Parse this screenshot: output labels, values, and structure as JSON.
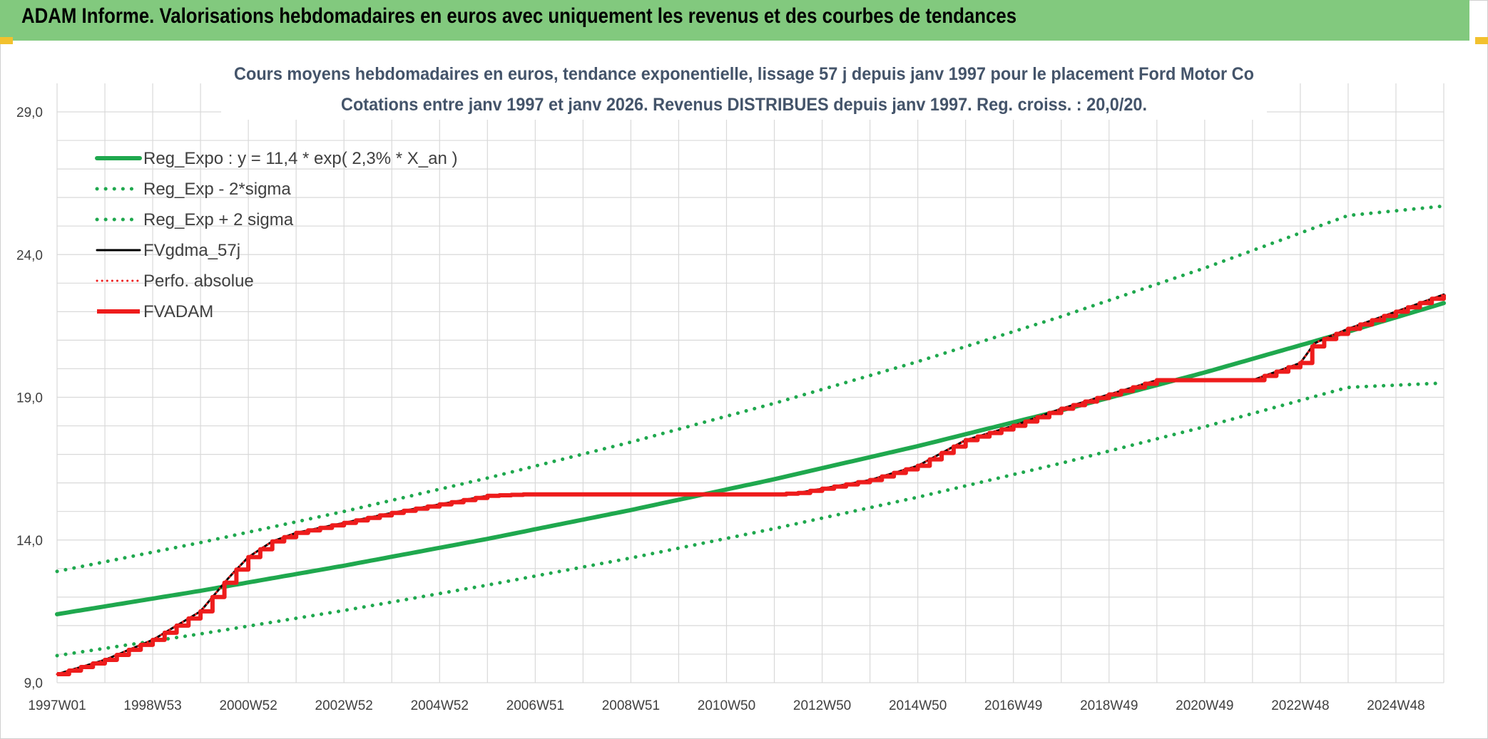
{
  "header": {
    "title": "ADAM Informe. Valorisations hebdomadaires en euros avec uniquement les revenus et des courbes de tendances"
  },
  "colors": {
    "header_bg": "#82c97e",
    "green": "#1fa84e",
    "red": "#ee1c1c",
    "black": "#000000",
    "grid": "#d9d9d9"
  },
  "chart_data": {
    "type": "line",
    "title": "Cours moyens hebdomadaires en euros, tendance exponentielle, lissage 57 j depuis janv 1997 pour le placement Ford Motor Co",
    "subtitle": "Cotations entre janv 1997 et janv 2026. Revenus DISTRIBUES depuis janv 1997. Reg. croiss. : 20,0/20.",
    "xlabel": "",
    "ylabel": "",
    "ylim": [
      9.0,
      29.0
    ],
    "xlim": [
      1997.0,
      2026.0
    ],
    "y_ticks": [
      "9,0",
      "14,0",
      "19,0",
      "24,0",
      "29,0"
    ],
    "y_tick_values": [
      9,
      14,
      19,
      24,
      29
    ],
    "x_ticks": [
      "1997W01",
      "1998W53",
      "2000W52",
      "2002W52",
      "2004W52",
      "2006W51",
      "2008W51",
      "2010W50",
      "2012W50",
      "2014W50",
      "2016W49",
      "2018W49",
      "2020W49",
      "2022W48",
      "2024W48"
    ],
    "x_tick_values": [
      1997,
      1999,
      2001,
      2003,
      2005,
      2007,
      2009,
      2011,
      2013,
      2015,
      2017,
      2019,
      2021,
      2023,
      2025
    ],
    "grid": true,
    "legend_position": "top-left",
    "series": [
      {
        "name": "Reg_Expo : y = 11,4 * exp( 2,3% *  X_an )",
        "style": "solid-green",
        "x": [
          1997,
          2000,
          2003,
          2006,
          2009,
          2012,
          2015,
          2018,
          2021,
          2024,
          2026
        ],
        "y": [
          11.4,
          12.22,
          13.1,
          14.04,
          15.05,
          16.13,
          17.29,
          18.54,
          19.87,
          21.3,
          22.3
        ]
      },
      {
        "name": "Reg_Exp - 2*sigma",
        "style": "dotted-green",
        "x": [
          1997,
          2000,
          2003,
          2006,
          2009,
          2012,
          2015,
          2018,
          2021,
          2024,
          2026
        ],
        "y": [
          9.95,
          10.71,
          11.53,
          12.42,
          13.37,
          14.4,
          15.5,
          16.69,
          17.97,
          19.35,
          19.5
        ]
      },
      {
        "name": "Reg_Exp + 2 sigma",
        "style": "dotted-green",
        "x": [
          1997,
          2000,
          2003,
          2006,
          2009,
          2012,
          2015,
          2018,
          2021,
          2024,
          2026
        ],
        "y": [
          12.9,
          13.91,
          15.0,
          16.17,
          17.43,
          18.79,
          20.25,
          21.83,
          23.53,
          25.37,
          25.7
        ]
      },
      {
        "name": "FVgdma_57j",
        "style": "solid-black",
        "x": [
          1997.0,
          1998.0,
          1999.0,
          2000.0,
          2000.6,
          2001.0,
          2001.5,
          2002.0,
          2003.0,
          2004.0,
          2005.0,
          2006.0,
          2006.8,
          2008.0,
          2010.0,
          2012.0,
          2012.5,
          2013.0,
          2014.0,
          2015.0,
          2016.0,
          2017.0,
          2018.0,
          2019.0,
          2020.0,
          2021.0,
          2022.0,
          2022.5,
          2023.0,
          2023.3,
          2024.0,
          2025.0,
          2026.0
        ],
        "y": [
          9.3,
          9.8,
          10.5,
          11.5,
          12.7,
          13.4,
          13.95,
          14.25,
          14.6,
          14.95,
          15.25,
          15.55,
          15.6,
          15.6,
          15.6,
          15.6,
          15.65,
          15.8,
          16.1,
          16.6,
          17.5,
          18.0,
          18.6,
          19.1,
          19.6,
          19.6,
          19.6,
          19.9,
          20.2,
          20.9,
          21.4,
          22.0,
          22.6
        ]
      },
      {
        "name": "Perfo. absolue",
        "style": "dotted-red",
        "x": [
          1997.0,
          1998.0,
          1999.0,
          2000.0,
          2000.6,
          2001.0,
          2001.5,
          2002.0,
          2003.0,
          2004.0,
          2005.0,
          2006.0,
          2006.8,
          2008.0,
          2010.0,
          2012.0,
          2012.5,
          2013.0,
          2014.0,
          2015.0,
          2016.0,
          2017.0,
          2018.0,
          2019.0,
          2020.0,
          2021.0,
          2022.0,
          2022.5,
          2023.0,
          2023.3,
          2024.0,
          2025.0,
          2026.0
        ],
        "y": [
          9.3,
          9.8,
          10.5,
          11.5,
          12.7,
          13.4,
          13.95,
          14.25,
          14.6,
          14.95,
          15.25,
          15.55,
          15.6,
          15.6,
          15.6,
          15.6,
          15.65,
          15.8,
          16.1,
          16.6,
          17.5,
          18.0,
          18.6,
          19.1,
          19.6,
          19.6,
          19.6,
          19.9,
          20.2,
          20.9,
          21.4,
          22.0,
          22.6
        ]
      },
      {
        "name": "FVADAM",
        "style": "solid-red-steps",
        "x": [
          1997.0,
          1998.0,
          1999.0,
          2000.0,
          2000.6,
          2001.0,
          2001.5,
          2002.0,
          2003.0,
          2004.0,
          2005.0,
          2006.0,
          2006.8,
          2008.0,
          2010.0,
          2012.0,
          2012.5,
          2013.0,
          2014.0,
          2015.0,
          2016.0,
          2017.0,
          2018.0,
          2019.0,
          2020.0,
          2021.0,
          2022.0,
          2022.5,
          2023.0,
          2023.3,
          2024.0,
          2025.0,
          2026.0
        ],
        "y": [
          9.3,
          9.8,
          10.5,
          11.5,
          12.7,
          13.4,
          13.95,
          14.25,
          14.6,
          14.95,
          15.25,
          15.55,
          15.6,
          15.6,
          15.6,
          15.6,
          15.65,
          15.8,
          16.1,
          16.6,
          17.5,
          18.0,
          18.6,
          19.1,
          19.6,
          19.6,
          19.6,
          19.9,
          20.2,
          20.9,
          21.4,
          22.0,
          22.6
        ]
      }
    ]
  }
}
